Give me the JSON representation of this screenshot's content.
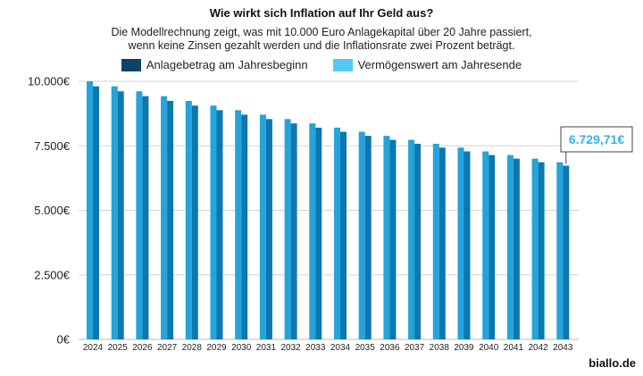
{
  "header": {
    "title": "Wie wirkt sich Inflation auf Ihr Geld aus?",
    "subtitle_line1": "Die Modellrechnung zeigt, was mit 10.000 Euro Anlagekapital über 20 Jahre passiert,",
    "subtitle_line2": "wenn keine Zinsen gezahlt werden und die Inflationsrate zwei Prozent beträgt."
  },
  "footer": {
    "brand": "biallo.de"
  },
  "colors": {
    "series_start": "#24A4DA",
    "series_end": "#0D77B0",
    "legend_start": "#0D4466",
    "legend_end": "#54C9F3",
    "callout_text": "#36B3E6",
    "grid": "#D6D6D6"
  },
  "chart_data": {
    "type": "bar",
    "title": "Wie wirkt sich Inflation auf Ihr Geld aus?",
    "categories": [
      "2024",
      "2025",
      "2026",
      "2027",
      "2028",
      "2029",
      "2030",
      "2031",
      "2032",
      "2033",
      "2034",
      "2035",
      "2036",
      "2037",
      "2038",
      "2039",
      "2040",
      "2041",
      "2042",
      "2043"
    ],
    "series": [
      {
        "name": "Anlagebetrag am Jahresbeginn",
        "values": [
          10000,
          9803.92,
          9611.69,
          9423.22,
          9238.45,
          9057.31,
          8879.71,
          8705.6,
          8534.9,
          8367.55,
          8203.48,
          8042.63,
          7884.93,
          7730.33,
          7578.75,
          7430.15,
          7284.46,
          7141.63,
          7001.6,
          6864.31
        ]
      },
      {
        "name": "Vermögenswert am Jahresende",
        "values": [
          9803.92,
          9611.69,
          9423.22,
          9238.45,
          9057.31,
          8879.71,
          8705.6,
          8534.9,
          8367.55,
          8203.48,
          8042.63,
          7884.93,
          7730.33,
          7578.75,
          7430.15,
          7284.46,
          7141.63,
          7001.6,
          6864.31,
          6729.71
        ]
      }
    ],
    "y_ticks": [
      0,
      2500,
      5000,
      7500,
      10000
    ],
    "y_tick_labels": [
      "0€",
      "2.500€",
      "5.000€",
      "7.500€",
      "10.000€"
    ],
    "ylim": [
      0,
      10000
    ],
    "xlabel": "",
    "ylabel": "",
    "grid": true,
    "legend_position": "top-center",
    "annotation": {
      "text": "6.729,71€",
      "category": "2043",
      "series": 1
    }
  }
}
